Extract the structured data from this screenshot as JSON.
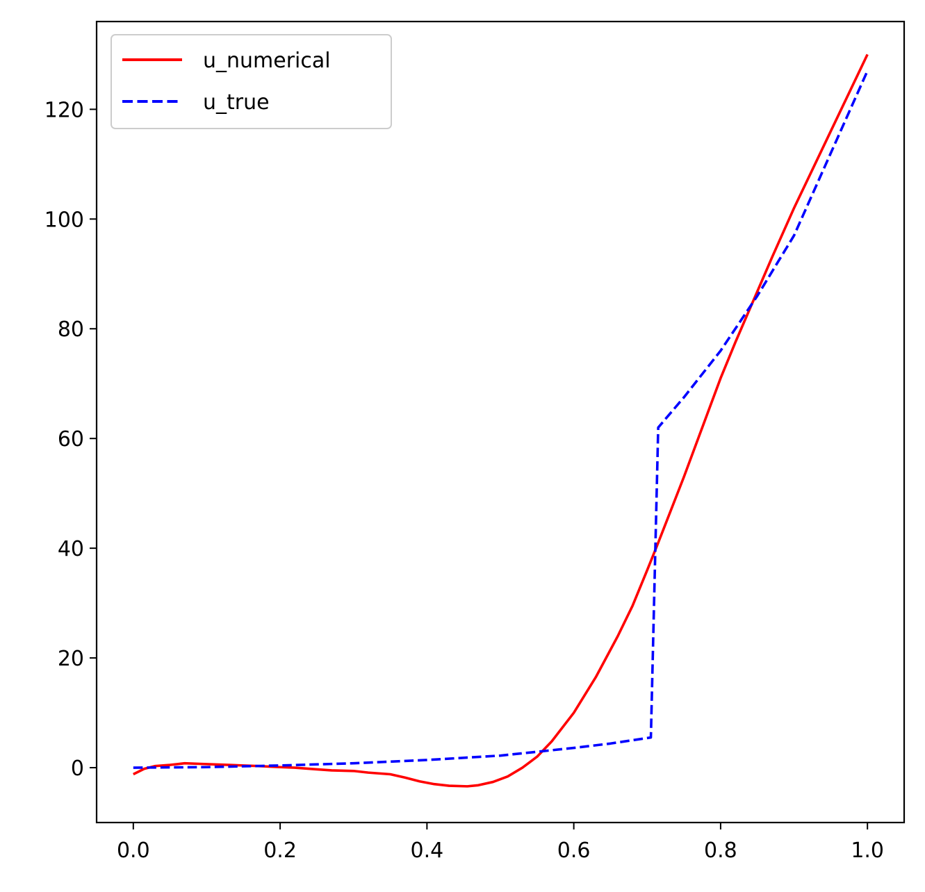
{
  "chart_data": {
    "type": "line",
    "title": "",
    "xlabel": "",
    "ylabel": "",
    "xlim": [
      -0.05,
      1.05
    ],
    "ylim": [
      -10,
      136
    ],
    "grid": false,
    "legend_position": "top-left",
    "x_ticks": [
      "0.0",
      "0.2",
      "0.4",
      "0.6",
      "0.8",
      "1.0"
    ],
    "y_ticks": [
      "0",
      "20",
      "40",
      "60",
      "80",
      "100",
      "120"
    ],
    "series": [
      {
        "name": "u_numerical",
        "color": "#ff0000",
        "style": "solid",
        "x": [
          0.0,
          0.015,
          0.03,
          0.05,
          0.07,
          0.09,
          0.11,
          0.13,
          0.15,
          0.17,
          0.2,
          0.22,
          0.25,
          0.27,
          0.3,
          0.32,
          0.35,
          0.37,
          0.39,
          0.41,
          0.43,
          0.455,
          0.47,
          0.49,
          0.51,
          0.53,
          0.55,
          0.57,
          0.6,
          0.63,
          0.66,
          0.68,
          0.7,
          0.715,
          0.75,
          0.8,
          0.82,
          0.87,
          0.9,
          0.95,
          1.0
        ],
        "y": [
          -1.2,
          -0.2,
          0.3,
          0.5,
          0.8,
          0.7,
          0.6,
          0.5,
          0.4,
          0.3,
          0.1,
          0.0,
          -0.3,
          -0.5,
          -0.6,
          -0.9,
          -1.2,
          -1.8,
          -2.5,
          -3.0,
          -3.3,
          -3.4,
          -3.2,
          -2.6,
          -1.6,
          0.0,
          2.0,
          4.8,
          10.0,
          16.5,
          24.0,
          29.5,
          36.0,
          41.0,
          53.0,
          71.0,
          77.5,
          93.0,
          102.0,
          116.0,
          130.0
        ]
      },
      {
        "name": "u_true",
        "color": "#0000ff",
        "style": "dashed",
        "x": [
          0.0,
          0.1,
          0.2,
          0.3,
          0.4,
          0.5,
          0.6,
          0.65,
          0.705,
          0.715,
          0.75,
          0.8,
          0.85,
          0.9,
          0.95,
          1.0
        ],
        "y": [
          0.0,
          0.1,
          0.4,
          0.8,
          1.4,
          2.2,
          3.6,
          4.4,
          5.5,
          62.0,
          67.5,
          76.0,
          86.0,
          97.0,
          112.0,
          127.0
        ]
      }
    ]
  }
}
